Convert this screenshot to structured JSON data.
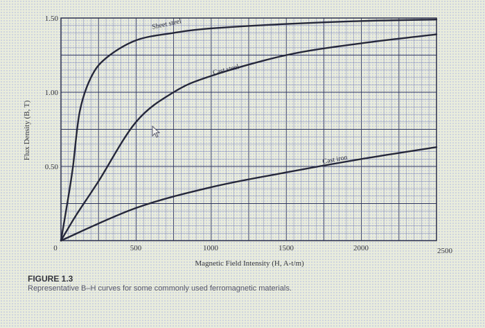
{
  "chart_data": {
    "type": "line",
    "title": "",
    "xlabel": "Magnetic Field Intensity (H, A-t/m)",
    "ylabel": "Flux Density (B, T)",
    "xlim": [
      0,
      2500
    ],
    "ylim": [
      0,
      1.5
    ],
    "x_ticks": [
      "0",
      "500",
      "1000",
      "1500",
      "2000",
      "2500"
    ],
    "y_ticks": [
      "0.50",
      "1.00",
      "1.50"
    ],
    "grid": true,
    "legend": "inline labels on curves",
    "series": [
      {
        "name": "Sheet steel",
        "x": [
          0,
          50,
          80,
          125,
          200,
          300,
          500,
          750,
          1000,
          1500,
          2000,
          2500
        ],
        "y": [
          0,
          0.3,
          0.5,
          0.87,
          1.1,
          1.23,
          1.35,
          1.4,
          1.43,
          1.46,
          1.48,
          1.49
        ]
      },
      {
        "name": "Cast steel",
        "x": [
          0,
          100,
          250,
          500,
          750,
          1000,
          1500,
          2000,
          2500
        ],
        "y": [
          0,
          0.17,
          0.4,
          0.8,
          1.0,
          1.11,
          1.25,
          1.33,
          1.39
        ]
      },
      {
        "name": "Cast iron",
        "x": [
          0,
          500,
          1000,
          1500,
          2000,
          2500
        ],
        "y": [
          0,
          0.22,
          0.36,
          0.46,
          0.55,
          0.63
        ]
      }
    ]
  },
  "labels": {
    "y_axis": "Flux Density (B, T)",
    "x_axis": "Magnetic Field Intensity (H, A-t/m)",
    "y_ticks": [
      "0.50",
      "1.00",
      "1.50"
    ],
    "x_ticks": [
      "0",
      "500",
      "1000",
      "1500",
      "2000",
      "2500"
    ],
    "curve_sheet": "Sheet steel",
    "curve_cast_steel": "Cast steel",
    "curve_cast_iron": "Cast iron"
  },
  "caption": {
    "title": "FIGURE 1.3",
    "text": "Representative B–H curves for some commonly used ferromagnetic materials."
  },
  "colors": {
    "grid_major": "#2e3560",
    "grid_minor": "#7d86b8",
    "curve": "#25273a",
    "background": "#e9ecdc"
  }
}
